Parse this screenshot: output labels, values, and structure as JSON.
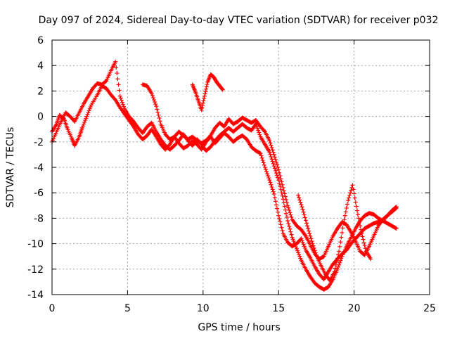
{
  "chart_data": {
    "type": "scatter",
    "title": "Day 097 of 2024, Sidereal Day-to-day VTEC variation (SDTVAR) for receiver p032",
    "xlabel": "GPS time / hours",
    "ylabel": "SDTVAR / TECUs",
    "xlim": [
      0,
      25
    ],
    "ylim": [
      -14,
      6
    ],
    "xticks": [
      0,
      5,
      10,
      15,
      20,
      25
    ],
    "yticks": [
      -14,
      -12,
      -10,
      -8,
      -6,
      -4,
      -2,
      0,
      2,
      4,
      6
    ],
    "grid": true,
    "marker": "+",
    "series": [
      {
        "name": "trace-a",
        "color": "#ff0000",
        "x": [
          0.0,
          0.3,
          0.5,
          0.8,
          1.0,
          1.3,
          1.5,
          1.8,
          2.0,
          2.3,
          2.6,
          3.0,
          3.3,
          3.6,
          3.9,
          4.2,
          4.5,
          4.8,
          5.1,
          5.4,
          5.7,
          6.0,
          6.3,
          6.6,
          6.9,
          7.2,
          7.5,
          7.8,
          8.1,
          8.4,
          8.7,
          9.0,
          9.3,
          9.6,
          9.9,
          10.2,
          10.5,
          10.8,
          11.1,
          11.4,
          11.7,
          12.0,
          12.3,
          12.6,
          12.9,
          13.2,
          13.5,
          13.8,
          14.1,
          14.4,
          14.7,
          15.0,
          15.3,
          15.6,
          15.9,
          16.2,
          16.5,
          16.8,
          17.1,
          17.4,
          17.7,
          18.0,
          18.3,
          18.6,
          18.9,
          19.2,
          19.5,
          19.8,
          20.1,
          20.4,
          20.7,
          21.0,
          21.3,
          21.6,
          21.9,
          22.2,
          22.5,
          22.8
        ],
        "y": [
          -1.2,
          -0.6,
          0.1,
          -0.2,
          -0.9,
          -1.7,
          -2.3,
          -1.6,
          -0.9,
          0.0,
          0.9,
          1.7,
          2.4,
          2.2,
          1.7,
          1.3,
          0.7,
          0.2,
          -0.3,
          -0.8,
          -1.4,
          -1.8,
          -1.5,
          -1.0,
          -1.6,
          -2.2,
          -2.6,
          -2.2,
          -1.6,
          -2.1,
          -2.5,
          -2.3,
          -1.9,
          -2.2,
          -2.6,
          -2.0,
          -1.6,
          -2.1,
          -1.7,
          -1.3,
          -1.6,
          -2.0,
          -1.7,
          -1.5,
          -1.8,
          -2.4,
          -2.7,
          -2.9,
          -4.0,
          -5.0,
          -6.1,
          -7.8,
          -9.2,
          -9.9,
          -10.2,
          -10.0,
          -9.6,
          -10.5,
          -11.1,
          -11.8,
          -12.4,
          -12.8,
          -12.2,
          -11.6,
          -11.2,
          -10.8,
          -10.5,
          -10.0,
          -9.6,
          -9.2,
          -8.8,
          -8.6,
          -8.4,
          -8.3,
          -8.2,
          -8.4,
          -8.6,
          -8.8
        ]
      },
      {
        "name": "trace-b",
        "color": "#ff0000",
        "x": [
          0.0,
          0.3,
          0.6,
          0.9,
          1.2,
          1.5,
          1.8,
          2.1,
          2.4,
          2.7,
          3.0,
          3.3,
          3.6,
          3.9,
          4.2,
          4.5,
          4.8,
          5.1,
          5.4,
          5.7,
          6.0,
          6.3,
          6.6,
          6.9,
          7.2,
          7.5,
          7.8,
          8.1,
          8.4,
          8.7,
          9.0,
          9.3,
          9.6,
          9.9,
          10.2,
          10.5,
          10.8,
          11.1,
          11.4,
          11.7,
          12.0,
          12.3,
          12.6,
          12.9,
          13.2,
          13.5,
          13.8,
          14.1,
          14.4,
          14.7,
          15.0,
          15.3,
          15.6,
          15.9,
          16.2,
          16.5,
          16.8,
          17.1,
          17.4,
          17.7,
          18.0,
          18.3,
          18.6,
          18.9,
          19.2,
          19.5,
          19.8,
          20.1,
          20.4,
          20.7,
          21.0,
          21.3,
          21.6,
          21.9,
          22.2,
          22.5,
          22.8
        ],
        "y": [
          -2.0,
          -1.2,
          -0.4,
          0.3,
          0.0,
          -0.4,
          0.3,
          1.0,
          1.6,
          2.2,
          2.6,
          2.5,
          2.8,
          3.6,
          4.3,
          1.6,
          0.6,
          0.0,
          -0.4,
          -0.9,
          -1.3,
          -0.8,
          -0.5,
          -1.2,
          -1.8,
          -2.3,
          -2.6,
          -2.3,
          -1.9,
          -1.4,
          -1.9,
          -2.3,
          -1.8,
          -2.2,
          -2.7,
          -2.4,
          -1.9,
          -1.5,
          -1.2,
          -0.9,
          -1.2,
          -0.9,
          -0.6,
          -0.9,
          -1.1,
          -0.6,
          -1.6,
          -2.2,
          -2.8,
          -3.9,
          -5.0,
          -6.5,
          -8.2,
          -9.5,
          -10.4,
          -11.3,
          -12.0,
          -12.6,
          -13.1,
          -13.4,
          -13.6,
          -13.4,
          -12.8,
          -12.0,
          -11.0,
          -10.2,
          -9.5,
          -8.8,
          -8.2,
          -7.8,
          -7.6,
          -7.7,
          -8.0,
          -8.2,
          -7.8,
          -7.4,
          -7.1
        ]
      },
      {
        "name": "trace-c",
        "color": "#ff0000",
        "x": [
          6.0,
          6.3,
          6.6,
          6.9,
          7.2,
          7.5,
          7.8,
          8.1,
          8.4,
          8.7,
          9.0,
          9.3,
          9.6,
          9.9,
          10.2,
          10.5,
          10.8,
          11.1,
          11.4,
          11.7,
          12.0,
          12.3,
          12.6,
          12.9,
          13.2,
          13.5,
          13.8,
          14.1,
          14.4,
          14.7,
          15.0,
          15.3,
          15.6,
          15.9,
          16.2,
          16.5,
          16.8,
          17.1,
          17.4,
          17.7,
          18.0,
          18.3,
          18.6,
          18.9,
          19.2,
          19.5,
          19.8,
          20.1,
          20.4,
          20.7,
          21.0,
          21.3,
          21.6,
          21.9,
          22.2,
          22.5,
          22.8
        ],
        "y": [
          2.5,
          2.4,
          1.8,
          0.8,
          -0.6,
          -1.4,
          -1.8,
          -1.6,
          -1.2,
          -1.5,
          -1.8,
          -1.6,
          -1.9,
          -2.1,
          -1.9,
          -1.5,
          -0.9,
          -0.5,
          -0.8,
          -0.2,
          -0.6,
          -0.4,
          -0.1,
          -0.3,
          -0.5,
          -0.3,
          -0.8,
          -1.2,
          -1.9,
          -3.0,
          -4.2,
          -5.6,
          -7.0,
          -8.1,
          -8.6,
          -8.9,
          -9.4,
          -10.1,
          -10.8,
          -11.2,
          -11.0,
          -10.2,
          -9.4,
          -8.8,
          -8.3,
          -8.5,
          -9.1,
          -9.8,
          -10.6,
          -10.9,
          -10.2,
          -9.4,
          -8.6,
          -8.1,
          -7.8,
          -7.5,
          -7.2
        ]
      },
      {
        "name": "trace-d",
        "color": "#ff0000",
        "x": [
          9.3,
          9.5,
          9.7,
          9.9,
          10.1,
          10.3,
          10.5,
          10.7,
          10.9,
          11.1,
          11.3
        ],
        "y": [
          2.5,
          1.9,
          1.2,
          0.5,
          1.6,
          2.7,
          3.3,
          3.1,
          2.7,
          2.4,
          2.1
        ]
      },
      {
        "name": "trace-e",
        "color": "#ff0000",
        "x": [
          16.3,
          16.6,
          16.9,
          17.2,
          17.5,
          17.8,
          18.1,
          18.4,
          18.7,
          19.0,
          19.3,
          19.6,
          19.9,
          20.2,
          20.5,
          20.8,
          21.1
        ],
        "y": [
          -6.2,
          -7.3,
          -8.6,
          -9.8,
          -10.9,
          -11.7,
          -12.4,
          -12.9,
          -12.2,
          -10.6,
          -8.4,
          -6.6,
          -5.4,
          -7.4,
          -9.2,
          -10.6,
          -11.2
        ]
      }
    ]
  }
}
